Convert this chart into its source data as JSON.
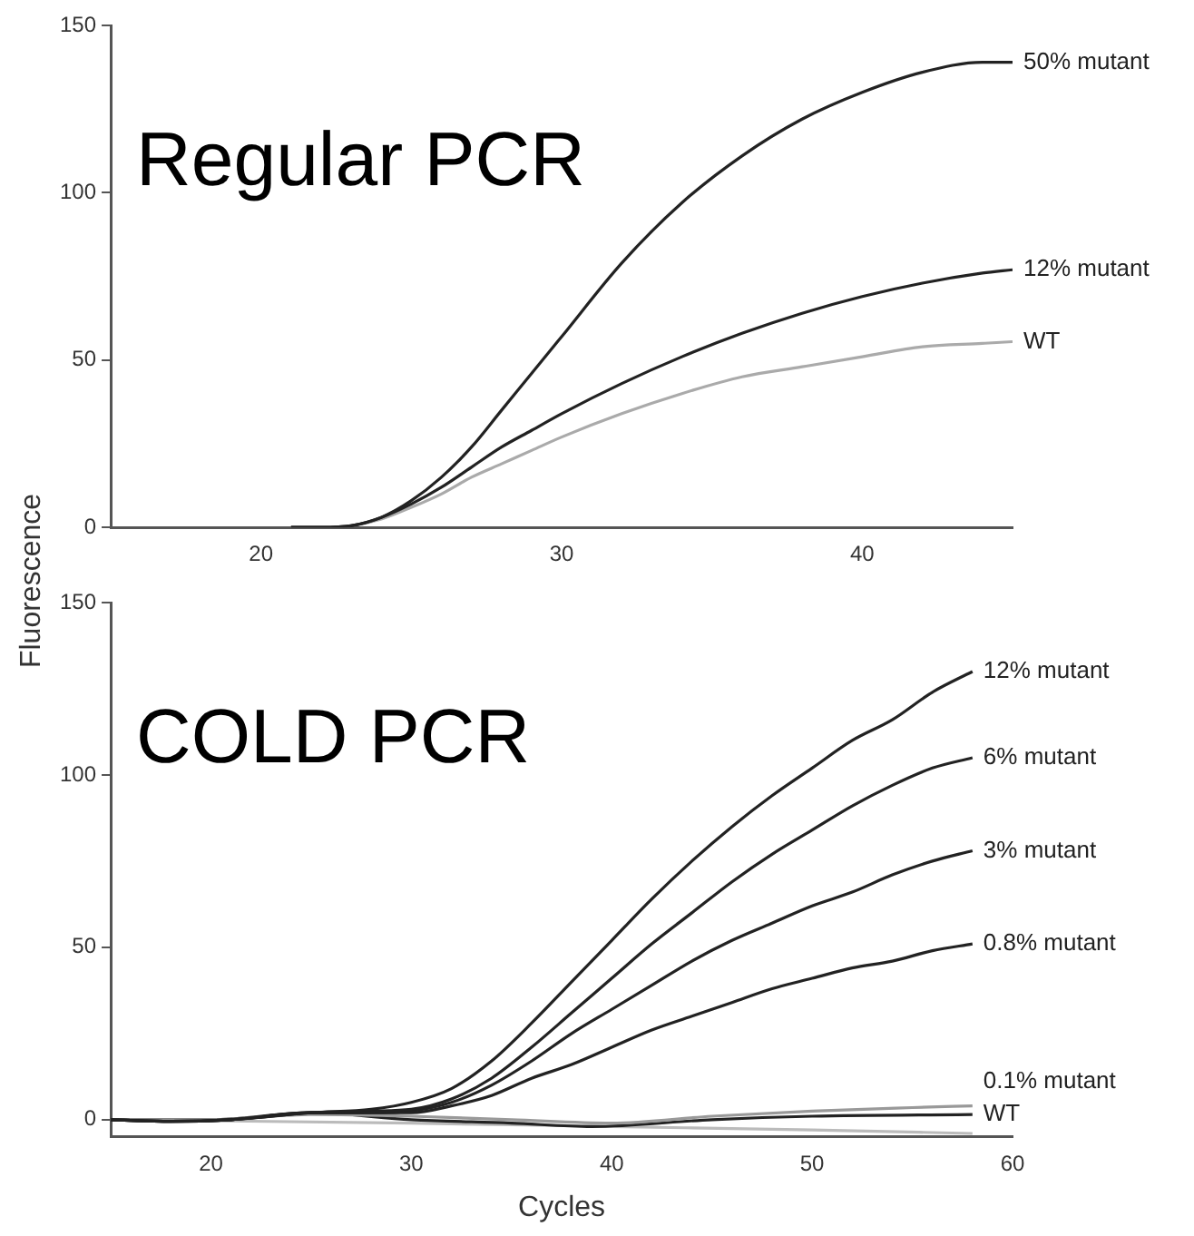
{
  "chart_data": [
    {
      "type": "line",
      "title": "Regular PCR",
      "ylabel": "Fluorescence",
      "xlim": [
        15,
        45
      ],
      "xticks": [
        20,
        30,
        40
      ],
      "ylim": [
        0,
        150
      ],
      "yticks": [
        0,
        50,
        100,
        150
      ],
      "grid": false,
      "legend": false,
      "marker": "none",
      "series": [
        {
          "name": "50% mutant",
          "color": "#222222",
          "x": [
            21,
            22,
            23,
            24,
            25,
            26,
            27,
            28,
            29,
            30,
            32,
            34,
            36,
            38,
            40,
            42,
            44,
            45
          ],
          "values": [
            0,
            0,
            0.5,
            3,
            8,
            15,
            24,
            35,
            46,
            57,
            79,
            97,
            111,
            122,
            130,
            136,
            139,
            139
          ]
        },
        {
          "name": "12% mutant",
          "color": "#222222",
          "x": [
            21,
            22,
            23,
            24,
            25,
            26,
            27,
            28,
            29,
            30,
            32,
            34,
            36,
            38,
            40,
            42,
            44,
            45
          ],
          "values": [
            0,
            0,
            0.5,
            3,
            7,
            12,
            18,
            24,
            29,
            34,
            43,
            51,
            58,
            64,
            69,
            73,
            76,
            77
          ]
        },
        {
          "name": "WT",
          "color": "#aaaaaa",
          "x": [
            21,
            22,
            23,
            24,
            25,
            26,
            27,
            28,
            29,
            30,
            32,
            34,
            36,
            38,
            40,
            42,
            44,
            45
          ],
          "values": [
            0,
            0,
            0.5,
            2.5,
            6,
            10,
            15,
            19,
            23,
            27,
            34,
            40,
            45,
            48,
            51,
            54,
            55,
            55.5
          ]
        }
      ]
    },
    {
      "type": "line",
      "title": "COLD PCR",
      "xlabel": "Cycles",
      "xlim": [
        15,
        60
      ],
      "xticks": [
        20,
        30,
        40,
        50,
        60
      ],
      "ylim": [
        -5,
        150
      ],
      "yticks": [
        0,
        50,
        100,
        150
      ],
      "grid": false,
      "legend": false,
      "marker": "none",
      "series": [
        {
          "name": "12% mutant",
          "color": "#222222",
          "x": [
            15,
            18,
            21,
            25,
            28,
            30,
            32,
            34,
            36,
            38,
            40,
            42,
            44,
            46,
            48,
            50,
            52,
            54,
            56,
            58
          ],
          "values": [
            0,
            -0.5,
            0,
            2,
            3,
            5,
            9,
            17,
            28,
            40,
            52,
            64,
            75,
            85,
            94,
            102,
            110,
            116,
            124,
            130
          ]
        },
        {
          "name": "6% mutant",
          "color": "#222222",
          "x": [
            15,
            18,
            21,
            25,
            28,
            30,
            32,
            34,
            36,
            38,
            40,
            42,
            44,
            46,
            48,
            50,
            52,
            54,
            56,
            58
          ],
          "values": [
            0,
            -0.5,
            0,
            2,
            2.5,
            3,
            6,
            12,
            21,
            31,
            41,
            51,
            60,
            69,
            77,
            84,
            91,
            97,
            102,
            105
          ]
        },
        {
          "name": "3% mutant",
          "color": "#222222",
          "x": [
            15,
            18,
            21,
            25,
            28,
            30,
            32,
            34,
            36,
            38,
            40,
            42,
            44,
            46,
            48,
            50,
            52,
            54,
            56,
            58
          ],
          "values": [
            0,
            -0.5,
            0,
            2,
            2,
            2.5,
            5,
            10,
            17,
            25,
            32,
            39,
            46,
            52,
            57,
            62,
            66,
            71,
            75,
            78
          ]
        },
        {
          "name": "0.8% mutant",
          "color": "#222222",
          "x": [
            15,
            18,
            21,
            25,
            28,
            30,
            32,
            34,
            36,
            38,
            40,
            42,
            44,
            46,
            48,
            50,
            52,
            54,
            56,
            58
          ],
          "values": [
            0,
            -0.5,
            0,
            2,
            2,
            2,
            4,
            7,
            12,
            16,
            21,
            26,
            30,
            34,
            38,
            41,
            44,
            46,
            49,
            51
          ]
        },
        {
          "name": "0.1% mutant",
          "color": "#999999",
          "x": [
            15,
            20,
            25,
            30,
            35,
            40,
            45,
            50,
            55,
            58
          ],
          "values": [
            0,
            0,
            1.5,
            1,
            0,
            -1,
            1,
            2.5,
            3.5,
            4
          ]
        },
        {
          "name": "WT",
          "color": "#222222",
          "x": [
            15,
            20,
            25,
            30,
            35,
            39,
            45,
            50,
            58
          ],
          "values": [
            0,
            0,
            2,
            0,
            -1,
            -2,
            0,
            1,
            1.5
          ]
        },
        {
          "color": "#bbbbbb",
          "x": [
            15,
            30,
            40,
            50,
            58
          ],
          "values": [
            0,
            -1,
            -2,
            -3,
            -4
          ]
        }
      ]
    }
  ]
}
